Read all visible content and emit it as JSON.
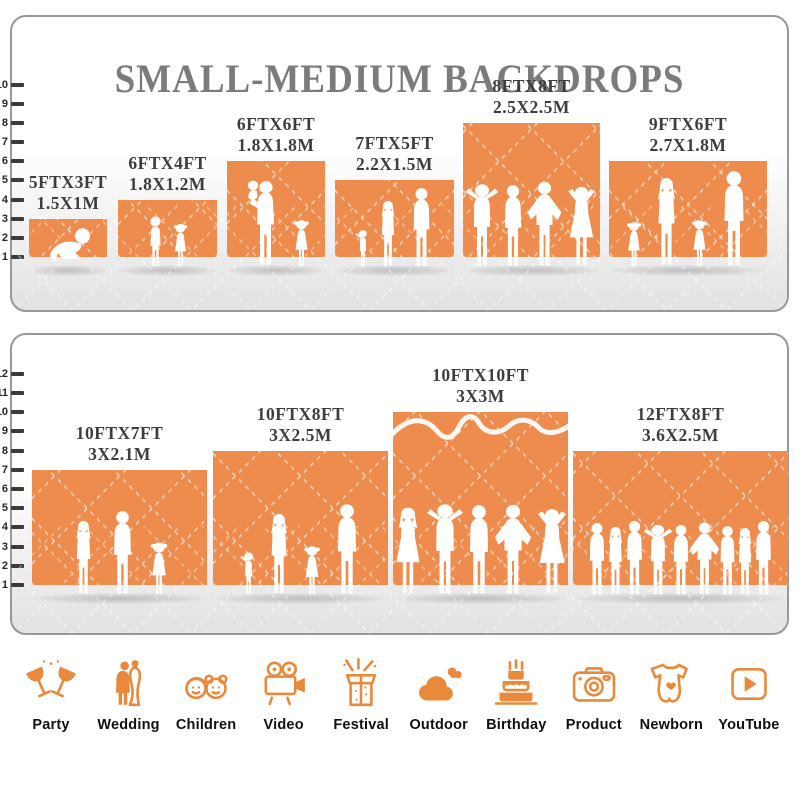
{
  "title": "SMALL-MEDIUM BACKDROPS",
  "colors": {
    "backdrop_orange": "#EE8C4E",
    "icon_orange": "#E8893B",
    "title_gray": "#7B7B7B",
    "label_dark": "#3F3D3C",
    "ruler_dark": "#3B3B3B"
  },
  "panels": [
    {
      "name": "small-backdrops",
      "ruler_labels": [
        "10",
        "9",
        "8",
        "7",
        "6",
        "5",
        "4",
        "3",
        "2",
        "1"
      ],
      "blocks": [
        {
          "size_ft": "5FTX3FT",
          "size_m": "1.5X1M",
          "ft": 3,
          "figures": [
            "crawling-baby"
          ]
        },
        {
          "size_ft": "6FTX4FT",
          "size_m": "1.8X1.2M",
          "ft": 4,
          "figures": [
            "boy",
            "girl"
          ]
        },
        {
          "size_ft": "6FTX6FT",
          "size_m": "1.8X1.8M",
          "ft": 6,
          "figures": [
            "mother-with-baby",
            "girl"
          ]
        },
        {
          "size_ft": "7FTX5FT",
          "size_m": "2.2X1.5M",
          "ft": 5,
          "figures": [
            "toddler",
            "woman",
            "man"
          ]
        },
        {
          "size_ft": "8FTX8FT",
          "size_m": "2.5X2.5M",
          "ft": 8,
          "figures": [
            "man-hands-head",
            "man",
            "man-hands-hips",
            "woman-hands-head"
          ]
        },
        {
          "size_ft": "9FTX6FT",
          "size_m": "2.7X1.8M",
          "ft": 6,
          "figures": [
            "girl",
            "woman",
            "girl",
            "man"
          ]
        }
      ]
    },
    {
      "name": "medium-backdrops",
      "ruler_labels": [
        "12",
        "11",
        "10",
        "9",
        "8",
        "7",
        "6",
        "5",
        "4",
        "3",
        "2",
        "1"
      ],
      "blocks": [
        {
          "size_ft": "10FTX7FT",
          "size_m": "3X2.1M",
          "ft": 7,
          "figures": [
            "woman",
            "man",
            "girl"
          ]
        },
        {
          "size_ft": "10FTX8FT",
          "size_m": "3X2.5M",
          "ft": 8,
          "figures": [
            "toddler",
            "woman",
            "girl",
            "man"
          ]
        },
        {
          "size_ft": "10FTX10FT",
          "size_m": "3X3M",
          "ft": 10,
          "figures": [
            "woman-dress",
            "man-hands-head",
            "man",
            "man-hands-hips",
            "woman-hands-head"
          ],
          "has_script_doodle": true
        },
        {
          "size_ft": "12FTX8FT",
          "size_m": "3.6X2.5M",
          "ft": 8,
          "figures": [
            "man",
            "woman",
            "man",
            "man-hands-head",
            "man",
            "man-hands-hips",
            "man",
            "woman",
            "man"
          ]
        }
      ]
    }
  ],
  "categories": [
    {
      "label": "Party",
      "icon": "party-icon"
    },
    {
      "label": "Wedding",
      "icon": "wedding-icon"
    },
    {
      "label": "Children",
      "icon": "children-icon"
    },
    {
      "label": "Video",
      "icon": "video-icon"
    },
    {
      "label": "Festival",
      "icon": "festival-icon"
    },
    {
      "label": "Outdoor",
      "icon": "outdoor-icon"
    },
    {
      "label": "Birthday",
      "icon": "birthday-icon"
    },
    {
      "label": "Product",
      "icon": "product-icon"
    },
    {
      "label": "Newborn",
      "icon": "newborn-icon"
    },
    {
      "label": "YouTube",
      "icon": "youtube-icon"
    }
  ]
}
